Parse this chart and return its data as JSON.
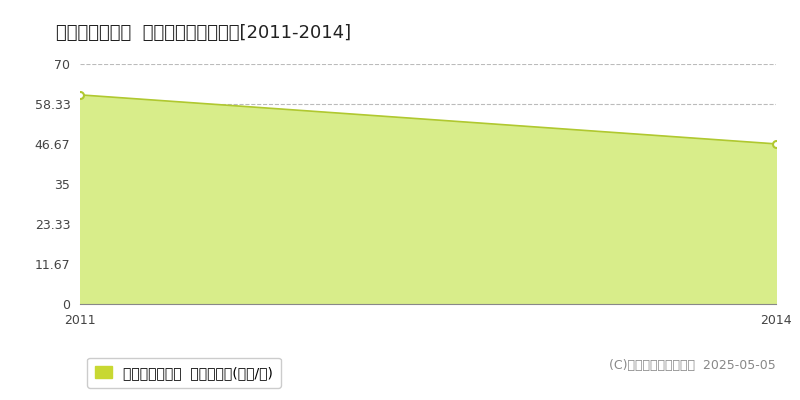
{
  "title": "岐阜市雄総桜町  マンション価格推移[2011-2014]",
  "x_values": [
    2011,
    2014
  ],
  "y_values": [
    61.0,
    46.7
  ],
  "fill_color": "#d8ed8a",
  "line_color": "#b0c830",
  "area_alpha": 1.0,
  "ylim": [
    0,
    70
  ],
  "xlim": [
    2011,
    2014
  ],
  "yticks": [
    0,
    11.67,
    23.33,
    35,
    46.67,
    58.33,
    70
  ],
  "ytick_labels": [
    "0",
    "11.67",
    "23.33",
    "35",
    "46.67",
    "58.33",
    "70"
  ],
  "xticks": [
    2011,
    2014
  ],
  "grid_color": "#bbbbbb",
  "grid_style": "--",
  "bg_color": "#ffffff",
  "fig_bg_color": "#ffffff",
  "legend_label": "マンション価格  平均坪単価(万円/坪)",
  "legend_color": "#c8d832",
  "copyright_text": "(C)土地価格ドットコム  2025-05-05",
  "title_fontsize": 13,
  "axis_fontsize": 9,
  "legend_fontsize": 10,
  "copyright_fontsize": 9
}
